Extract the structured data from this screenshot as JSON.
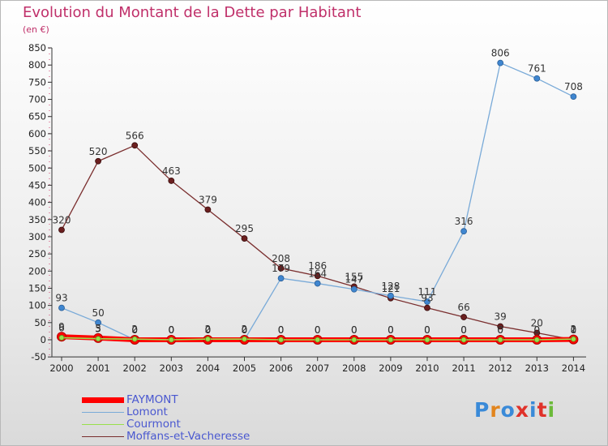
{
  "title": "Evolution du Montant de la Dette par Habitant",
  "unit": "(en €)",
  "logo": {
    "text": "Proxiti",
    "letter_colors": [
      "#3a8ad8",
      "#e2851e",
      "#3a8ad8",
      "#e0322a",
      "#3a8ad8",
      "#e0322a",
      "#6cba3a"
    ]
  },
  "chart_data": {
    "type": "line",
    "title": "Evolution du Montant de la Dette par Habitant",
    "ylabel": "(en €)",
    "xlabel": "",
    "x": [
      "2000",
      "2001",
      "2002",
      "2003",
      "2004",
      "2005",
      "2006",
      "2007",
      "2008",
      "2009",
      "2010",
      "2011",
      "2012",
      "2013",
      "2014"
    ],
    "ylim": [
      -50,
      850
    ],
    "yticks": [
      -50,
      0,
      50,
      100,
      150,
      200,
      250,
      300,
      350,
      400,
      450,
      500,
      550,
      600,
      650,
      700,
      750,
      800,
      850
    ],
    "grid": false,
    "legend_position": "bottom-left",
    "series": [
      {
        "name": "FAYMONT",
        "color": "#ff0000",
        "values": [
          9,
          5,
          0,
          0,
          0,
          0,
          0,
          0,
          0,
          0,
          0,
          0,
          0,
          0,
          1
        ]
      },
      {
        "name": "Lomont",
        "color": "#79aad8",
        "values": [
          93,
          50,
          0,
          0,
          0,
          0,
          179,
          164,
          147,
          128,
          111,
          316,
          806,
          761,
          708
        ]
      },
      {
        "name": "Courmont",
        "color": "#99e04c",
        "values": [
          6,
          3,
          2,
          0,
          2,
          2,
          0,
          0,
          0,
          0,
          0,
          0,
          0,
          0,
          2
        ]
      },
      {
        "name": "Moffans-et-Vacheresse",
        "color": "#7a2e2e",
        "values": [
          320,
          520,
          566,
          463,
          379,
          295,
          208,
          186,
          155,
          121,
          93,
          66,
          39,
          20,
          0
        ]
      }
    ]
  }
}
